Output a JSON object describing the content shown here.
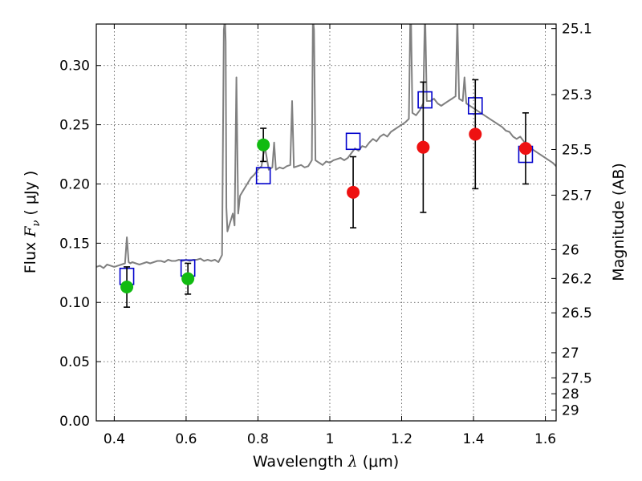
{
  "chart_data": {
    "type": "scatter",
    "xlabel_main": "Wavelength  ",
    "xlabel_symbol": "λ",
    "xlabel_unit": " (μm)",
    "ylabel_main": "Flux  ",
    "ylabel_symbol": "F",
    "ylabel_sub": "ν",
    "ylabel_unit": "  ( μJy )",
    "y2label": "Magnitude (AB)",
    "xlim": [
      0.35,
      1.63
    ],
    "ylim": [
      0.0,
      0.335
    ],
    "x_ticks": [
      0.4,
      0.6,
      0.8,
      1.0,
      1.2,
      1.4,
      1.6
    ],
    "x_tick_labels": [
      "0.4",
      "0.6",
      "0.8",
      "1",
      "1.2",
      "1.4",
      "1.6"
    ],
    "y_ticks": [
      0.0,
      0.05,
      0.1,
      0.15,
      0.2,
      0.25,
      0.3
    ],
    "y_tick_labels": [
      "0.00",
      "0.05",
      "0.10",
      "0.15",
      "0.20",
      "0.25",
      "0.30"
    ],
    "y2_ticks": [
      25.1,
      25.3,
      25.5,
      25.7,
      26,
      26.2,
      26.5,
      27,
      27.5,
      28,
      29
    ],
    "y2_tick_labels": [
      "25.1",
      "25.3",
      "25.5",
      "25.7",
      "26",
      "26.2",
      "26.5",
      "27",
      "27.5",
      "28",
      "29"
    ],
    "grid": true,
    "colors": {
      "spectrum": "#808080",
      "model_photometry": "#0000cc",
      "optical_detections": "#11bb11",
      "nir_detections": "#ee1111",
      "errorbar": "#000000"
    },
    "series": [
      {
        "kind": "spectrum",
        "x": [
          0.35,
          0.36,
          0.37,
          0.38,
          0.39,
          0.4,
          0.41,
          0.42,
          0.43,
          0.435,
          0.44,
          0.445,
          0.45,
          0.46,
          0.47,
          0.48,
          0.49,
          0.5,
          0.51,
          0.52,
          0.53,
          0.54,
          0.55,
          0.56,
          0.57,
          0.58,
          0.59,
          0.6,
          0.61,
          0.62,
          0.63,
          0.64,
          0.65,
          0.66,
          0.67,
          0.68,
          0.69,
          0.7,
          0.705,
          0.708,
          0.71,
          0.712,
          0.715,
          0.72,
          0.725,
          0.73,
          0.735,
          0.74,
          0.745,
          0.75,
          0.76,
          0.77,
          0.78,
          0.79,
          0.8,
          0.81,
          0.815,
          0.82,
          0.83,
          0.84,
          0.845,
          0.85,
          0.86,
          0.87,
          0.88,
          0.89,
          0.895,
          0.9,
          0.91,
          0.92,
          0.93,
          0.94,
          0.95,
          0.953,
          0.956,
          0.96,
          0.97,
          0.98,
          0.99,
          1.0,
          1.01,
          1.02,
          1.03,
          1.04,
          1.05,
          1.06,
          1.07,
          1.08,
          1.09,
          1.1,
          1.11,
          1.12,
          1.13,
          1.14,
          1.15,
          1.16,
          1.17,
          1.18,
          1.19,
          1.2,
          1.21,
          1.22,
          1.225,
          1.23,
          1.24,
          1.25,
          1.26,
          1.265,
          1.27,
          1.28,
          1.29,
          1.3,
          1.31,
          1.32,
          1.33,
          1.34,
          1.35,
          1.355,
          1.36,
          1.37,
          1.375,
          1.38,
          1.39,
          1.4,
          1.41,
          1.42,
          1.43,
          1.44,
          1.45,
          1.46,
          1.47,
          1.48,
          1.49,
          1.5,
          1.51,
          1.52,
          1.53,
          1.54,
          1.55,
          1.56,
          1.57,
          1.58,
          1.59,
          1.6,
          1.61,
          1.62,
          1.63
        ],
        "y": [
          0.13,
          0.131,
          0.129,
          0.132,
          0.131,
          0.13,
          0.131,
          0.132,
          0.133,
          0.155,
          0.134,
          0.133,
          0.134,
          0.133,
          0.132,
          0.133,
          0.134,
          0.133,
          0.134,
          0.135,
          0.135,
          0.134,
          0.136,
          0.135,
          0.135,
          0.136,
          0.135,
          0.136,
          0.135,
          0.136,
          0.136,
          0.137,
          0.135,
          0.136,
          0.135,
          0.136,
          0.134,
          0.14,
          0.33,
          0.34,
          0.32,
          0.18,
          0.16,
          0.165,
          0.17,
          0.175,
          0.165,
          0.29,
          0.175,
          0.19,
          0.195,
          0.2,
          0.205,
          0.208,
          0.212,
          0.215,
          0.225,
          0.23,
          0.212,
          0.214,
          0.235,
          0.212,
          0.214,
          0.213,
          0.215,
          0.216,
          0.27,
          0.214,
          0.215,
          0.216,
          0.214,
          0.215,
          0.22,
          0.34,
          0.33,
          0.22,
          0.218,
          0.216,
          0.219,
          0.218,
          0.22,
          0.221,
          0.222,
          0.22,
          0.222,
          0.226,
          0.23,
          0.228,
          0.232,
          0.231,
          0.235,
          0.238,
          0.236,
          0.24,
          0.242,
          0.24,
          0.244,
          0.246,
          0.248,
          0.25,
          0.252,
          0.255,
          0.36,
          0.26,
          0.258,
          0.262,
          0.268,
          0.35,
          0.27,
          0.27,
          0.272,
          0.268,
          0.266,
          0.268,
          0.27,
          0.272,
          0.274,
          0.34,
          0.272,
          0.27,
          0.29,
          0.268,
          0.266,
          0.264,
          0.262,
          0.26,
          0.258,
          0.256,
          0.254,
          0.252,
          0.25,
          0.248,
          0.245,
          0.244,
          0.24,
          0.238,
          0.24,
          0.236,
          0.232,
          0.23,
          0.228,
          0.226,
          0.224,
          0.222,
          0.22,
          0.218,
          0.215
        ]
      },
      {
        "kind": "model",
        "name": "",
        "x": [
          0.435,
          0.605,
          0.815,
          1.065,
          1.265,
          1.405,
          1.545
        ],
        "y": [
          0.122,
          0.129,
          0.207,
          0.236,
          0.271,
          0.266,
          0.225
        ]
      },
      {
        "kind": "detection-optical",
        "name": "",
        "x": [
          0.435,
          0.605,
          0.815
        ],
        "y": [
          0.113,
          0.12,
          0.233
        ],
        "err": [
          0.017,
          0.013,
          0.014
        ]
      },
      {
        "kind": "detection-nir",
        "name": "",
        "x": [
          1.065,
          1.26,
          1.405,
          1.545
        ],
        "y": [
          0.193,
          0.231,
          0.242,
          0.23
        ],
        "err": [
          0.03,
          0.055,
          0.046,
          0.03
        ]
      }
    ]
  }
}
